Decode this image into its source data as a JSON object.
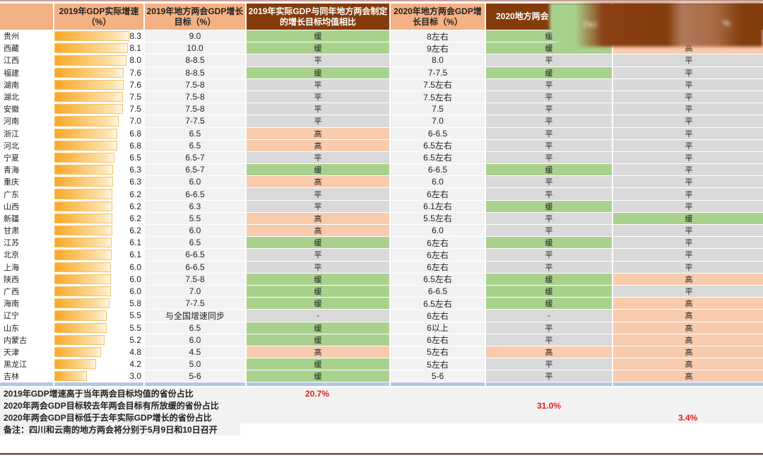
{
  "header": [
    "",
    "2019年GDP实际增速（%）",
    "2019年地方两会GDP增长目标（%）",
    "2019年实际GDP与同年地方两会制定的增长目标均值相比",
    "2020年地方两会GDP增长目标（%）",
    "2020地方两会 相比上届两会",
    "%"
  ],
  "overlay": {
    "left_text": "（%）",
    "right_text": "%"
  },
  "colors": {
    "slower": "#a9d18e",
    "higher": "#f8cbad",
    "flat": "#d9d9d9",
    "header_orange": "#f4b183",
    "header_brown": "#843c0c"
  },
  "rows": [
    [
      "贵州",
      8.3,
      "9.0",
      "缓",
      "8左右",
      "缓",
      ""
    ],
    [
      "西藏",
      8.1,
      "10.0",
      "缓",
      "9左右",
      "缓",
      "高"
    ],
    [
      "江西",
      8.0,
      "8-8.5",
      "平",
      "8.0",
      "平",
      "平"
    ],
    [
      "福建",
      7.6,
      "8-8.5",
      "缓",
      "7-7.5",
      "缓",
      "平"
    ],
    [
      "湖南",
      7.6,
      "7.5-8",
      "平",
      "7.5左右",
      "平",
      "平"
    ],
    [
      "湖北",
      7.5,
      "7.5-8",
      "平",
      "7.5左右",
      "平",
      "平"
    ],
    [
      "安徽",
      7.5,
      "7.5-8",
      "平",
      "7.5",
      "平",
      "平"
    ],
    [
      "河南",
      7.0,
      "7-7.5",
      "平",
      "7.0",
      "平",
      "平"
    ],
    [
      "浙江",
      6.8,
      "6.5",
      "高",
      "6-6.5",
      "平",
      "平"
    ],
    [
      "河北",
      6.8,
      "6.5",
      "高",
      "6.5左右",
      "平",
      "平"
    ],
    [
      "宁夏",
      6.5,
      "6.5-7",
      "平",
      "6.5左右",
      "平",
      "平"
    ],
    [
      "青海",
      6.3,
      "6.5-7",
      "缓",
      "6-6.5",
      "缓",
      "平"
    ],
    [
      "重庆",
      6.3,
      "6.0",
      "高",
      "6.0",
      "平",
      "平"
    ],
    [
      "广东",
      6.2,
      "6-6.5",
      "平",
      "6左右",
      "平",
      "平"
    ],
    [
      "山西",
      6.2,
      "6.3",
      "平",
      "6.1左右",
      "缓",
      "平"
    ],
    [
      "新疆",
      6.2,
      "5.5",
      "高",
      "5.5左右",
      "平",
      "缓"
    ],
    [
      "甘肃",
      6.2,
      "6.0",
      "高",
      "6.0",
      "平",
      "平"
    ],
    [
      "江苏",
      6.1,
      "6.5",
      "缓",
      "6左右",
      "缓",
      "平"
    ],
    [
      "北京",
      6.1,
      "6-6.5",
      "平",
      "6左右",
      "平",
      "平"
    ],
    [
      "上海",
      6.0,
      "6-6.5",
      "平",
      "6左右",
      "平",
      "平"
    ],
    [
      "陕西",
      6.0,
      "7.5-8",
      "缓",
      "6.5左右",
      "缓",
      "高"
    ],
    [
      "广西",
      6.0,
      "7.0",
      "缓",
      "6-6.5",
      "缓",
      "平"
    ],
    [
      "海南",
      5.8,
      "7-7.5",
      "缓",
      "6.5左右",
      "缓",
      "高"
    ],
    [
      "辽宁",
      5.5,
      "与全国增速同步",
      "-",
      "6左右",
      "-",
      "高"
    ],
    [
      "山东",
      5.5,
      "6.5",
      "缓",
      "6以上",
      "平",
      "高"
    ],
    [
      "内蒙古",
      5.2,
      "6.0",
      "缓",
      "6左右",
      "平",
      "高"
    ],
    [
      "天津",
      4.8,
      "4.5",
      "高",
      "5左右",
      "高",
      "高"
    ],
    [
      "黑龙江",
      4.2,
      "5.0",
      "缓",
      "5左右",
      "平",
      "高"
    ],
    [
      "吉林",
      3.0,
      "5-6",
      "缓",
      "5-6",
      "平",
      "高"
    ]
  ],
  "summary": [
    {
      "label": "2019年GDP增速高于当年两会目标均值的省份占比",
      "value": "20.7%"
    },
    {
      "label": "2020年两会GDP目标较去年两会目标有所放缓的省份占比",
      "value": "31.0%"
    },
    {
      "label": "2020年两会GDP目标低于去年实际GDP增长的省份占比",
      "value": "3.4%"
    }
  ],
  "note": "备注：四川和云南的地方两会将分别于5月9日和10日召开"
}
